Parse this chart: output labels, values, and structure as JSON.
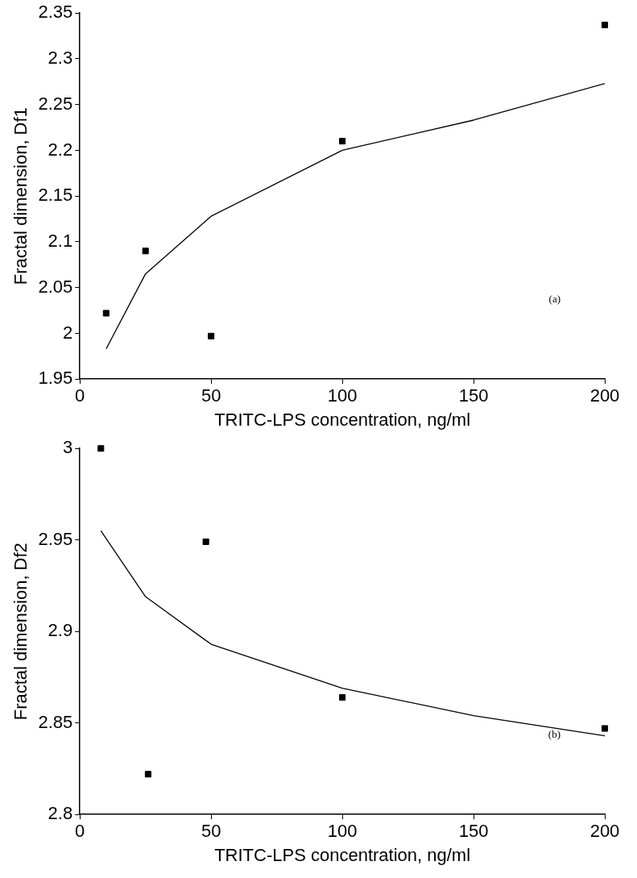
{
  "chart_data": [
    {
      "type": "scatter",
      "xlabel": "TRITC-LPS concentration, ng/ml",
      "ylabel": "Fractal dimension, Df1",
      "annotations": [
        "(a)"
      ],
      "xlim": [
        0,
        200
      ],
      "xticks": [
        0,
        50,
        100,
        150,
        200
      ],
      "ylim": [
        1.95,
        2.35
      ],
      "yticks": [
        {
          "value": 1.95,
          "label": "1.95"
        },
        {
          "value": 2,
          "label": "2"
        },
        {
          "value": 2.05,
          "label": "2.05"
        },
        {
          "value": 2.1,
          "label": "2.1"
        },
        {
          "value": 2.15,
          "label": "2.15"
        },
        {
          "value": 2.2,
          "label": "2.2"
        },
        {
          "value": 2.25,
          "label": "2.25"
        },
        {
          "value": 2.3,
          "label": "2.3"
        },
        {
          "value": 2.35,
          "label": "2.35"
        }
      ],
      "grid": false,
      "legend": false,
      "marker": "square",
      "series": [
        {
          "color": "#000000",
          "x": [
            10,
            25,
            50,
            100,
            200
          ],
          "values": [
            2.022,
            2.09,
            1.997,
            2.21,
            2.337
          ]
        },
        {
          "type": "line",
          "color": "#000000",
          "marker": "none",
          "x": [
            10,
            25,
            50,
            100,
            150,
            200
          ],
          "values": [
            1.983,
            2.065,
            2.128,
            2.2,
            2.233,
            2.273
          ]
        }
      ]
    },
    {
      "type": "scatter",
      "xlabel": "TRITC-LPS concentration, ng/ml",
      "ylabel": "Fractal dimension, Df2",
      "annotations": [
        "(b)"
      ],
      "xlim": [
        0,
        200
      ],
      "xticks": [
        0,
        50,
        100,
        150,
        200
      ],
      "ylim": [
        2.8,
        3
      ],
      "yticks": [
        {
          "value": 2.8,
          "label": "2.8"
        },
        {
          "value": 2.85,
          "label": "2.85"
        },
        {
          "value": 2.9,
          "label": "2.9"
        },
        {
          "value": 2.95,
          "label": "2.95"
        },
        {
          "value": 3,
          "label": "3"
        }
      ],
      "grid": false,
      "legend": false,
      "marker": "square",
      "series": [
        {
          "color": "#000000",
          "x": [
            8,
            26,
            48,
            100,
            200
          ],
          "values": [
            3.0,
            2.822,
            2.949,
            2.864,
            2.847
          ]
        },
        {
          "type": "line",
          "color": "#000000",
          "marker": "none",
          "x": [
            8,
            25,
            50,
            100,
            150,
            200
          ],
          "values": [
            2.955,
            2.919,
            2.893,
            2.869,
            2.854,
            2.843
          ]
        }
      ]
    }
  ]
}
